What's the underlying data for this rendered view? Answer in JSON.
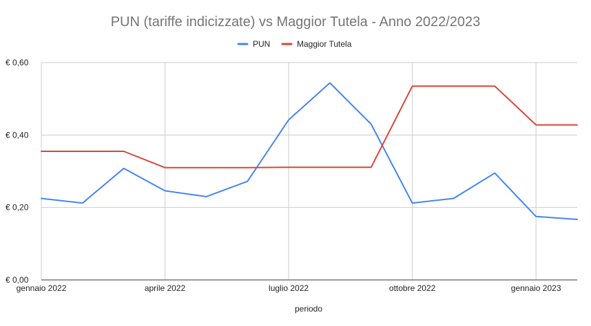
{
  "chart_data": {
    "type": "line",
    "title": "PUN (tariffe indicizzate) vs Maggior Tutela - Anno 2022/2023",
    "xlabel": "periodo",
    "ylabel": "",
    "ylim": [
      0,
      0.6
    ],
    "y_ticks": [
      {
        "value": 0.0,
        "label": "€ 0,00"
      },
      {
        "value": 0.2,
        "label": "€ 0,20"
      },
      {
        "value": 0.4,
        "label": "€ 0,40"
      },
      {
        "value": 0.6,
        "label": "€ 0,60"
      }
    ],
    "x_periods": [
      "2022-01",
      "2022-02",
      "2022-03",
      "2022-04",
      "2022-05",
      "2022-06",
      "2022-07",
      "2022-08",
      "2022-09",
      "2022-10",
      "2022-11",
      "2022-12",
      "2023-01",
      "2023-02"
    ],
    "x_ticks": [
      {
        "period": "2022-01",
        "label": "gennaio 2022"
      },
      {
        "period": "2022-04",
        "label": "aprile 2022"
      },
      {
        "period": "2022-07",
        "label": "luglio 2022"
      },
      {
        "period": "2022-10",
        "label": "ottobre 2022"
      },
      {
        "period": "2023-01",
        "label": "gennaio 2023"
      }
    ],
    "grid": true,
    "legend_position": "top",
    "series": [
      {
        "name": "PUN",
        "color": "#4285f4",
        "values": [
          0.225,
          0.212,
          0.308,
          0.246,
          0.23,
          0.272,
          0.442,
          0.544,
          0.43,
          0.212,
          0.225,
          0.295,
          0.175,
          0.167
        ]
      },
      {
        "name": "Maggior Tutela",
        "color": "#db4437",
        "values": [
          0.355,
          0.355,
          0.355,
          0.31,
          0.31,
          0.31,
          0.311,
          0.311,
          0.311,
          0.535,
          0.535,
          0.535,
          0.428,
          0.428
        ]
      }
    ]
  }
}
